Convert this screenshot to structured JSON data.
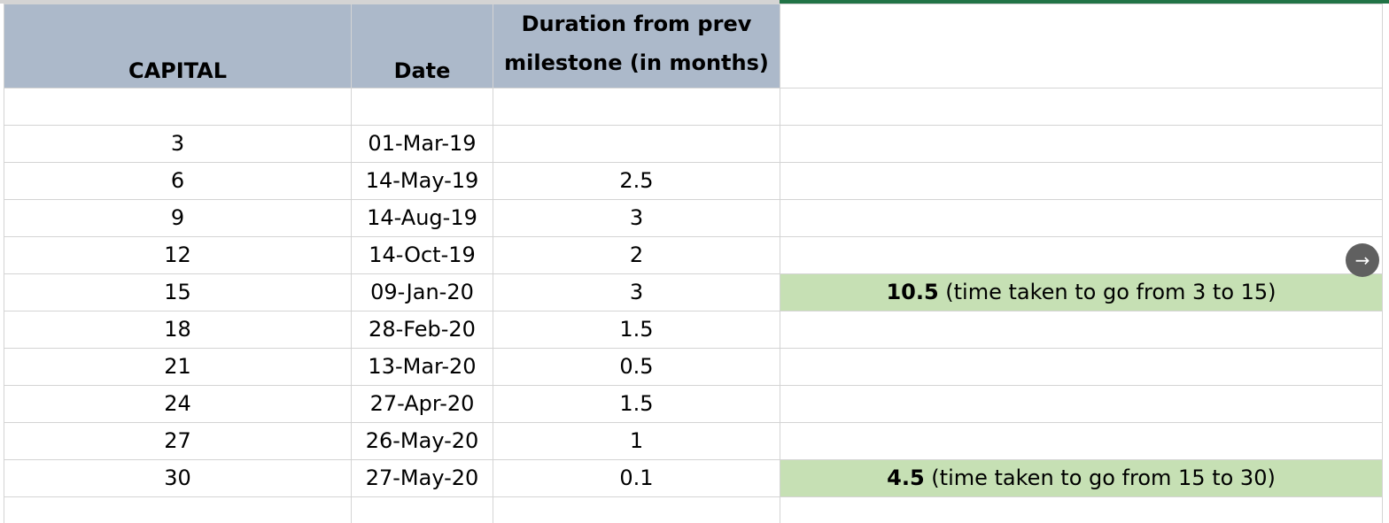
{
  "sheet": {
    "headers": {
      "capital": "CAPITAL",
      "date": "Date",
      "duration": "Duration from prev milestone (in months)"
    },
    "rows": [
      {
        "capital": "",
        "date": "",
        "duration": "",
        "note_value": "",
        "note_text": ""
      },
      {
        "capital": "3",
        "date": "01-Mar-19",
        "duration": "",
        "note_value": "",
        "note_text": ""
      },
      {
        "capital": "6",
        "date": "14-May-19",
        "duration": "2.5",
        "note_value": "",
        "note_text": ""
      },
      {
        "capital": "9",
        "date": "14-Aug-19",
        "duration": "3",
        "note_value": "",
        "note_text": ""
      },
      {
        "capital": "12",
        "date": "14-Oct-19",
        "duration": "2",
        "note_value": "",
        "note_text": ""
      },
      {
        "capital": "15",
        "date": "09-Jan-20",
        "duration": "3",
        "note_value": "10.5",
        "note_text": " (time taken to go from 3 to 15)"
      },
      {
        "capital": "18",
        "date": "28-Feb-20",
        "duration": "1.5",
        "note_value": "",
        "note_text": ""
      },
      {
        "capital": "21",
        "date": "13-Mar-20",
        "duration": "0.5",
        "note_value": "",
        "note_text": ""
      },
      {
        "capital": "24",
        "date": "27-Apr-20",
        "duration": "1.5",
        "note_value": "",
        "note_text": ""
      },
      {
        "capital": "27",
        "date": "26-May-20",
        "duration": "1",
        "note_value": "",
        "note_text": ""
      },
      {
        "capital": "30",
        "date": "27-May-20",
        "duration": "0.1",
        "note_value": "4.5",
        "note_text": " (time taken to go from 15 to 30)"
      },
      {
        "capital": "",
        "date": "",
        "duration": "",
        "note_value": "",
        "note_text": ""
      }
    ],
    "colors": {
      "header_fill": "#acb9ca",
      "note_fill": "#c6e0b4",
      "gridline": "#d4d4d4",
      "selection_border": "#217346"
    }
  },
  "overlay": {
    "nav_icon": "arrow-right-icon",
    "nav_glyph": "→"
  }
}
